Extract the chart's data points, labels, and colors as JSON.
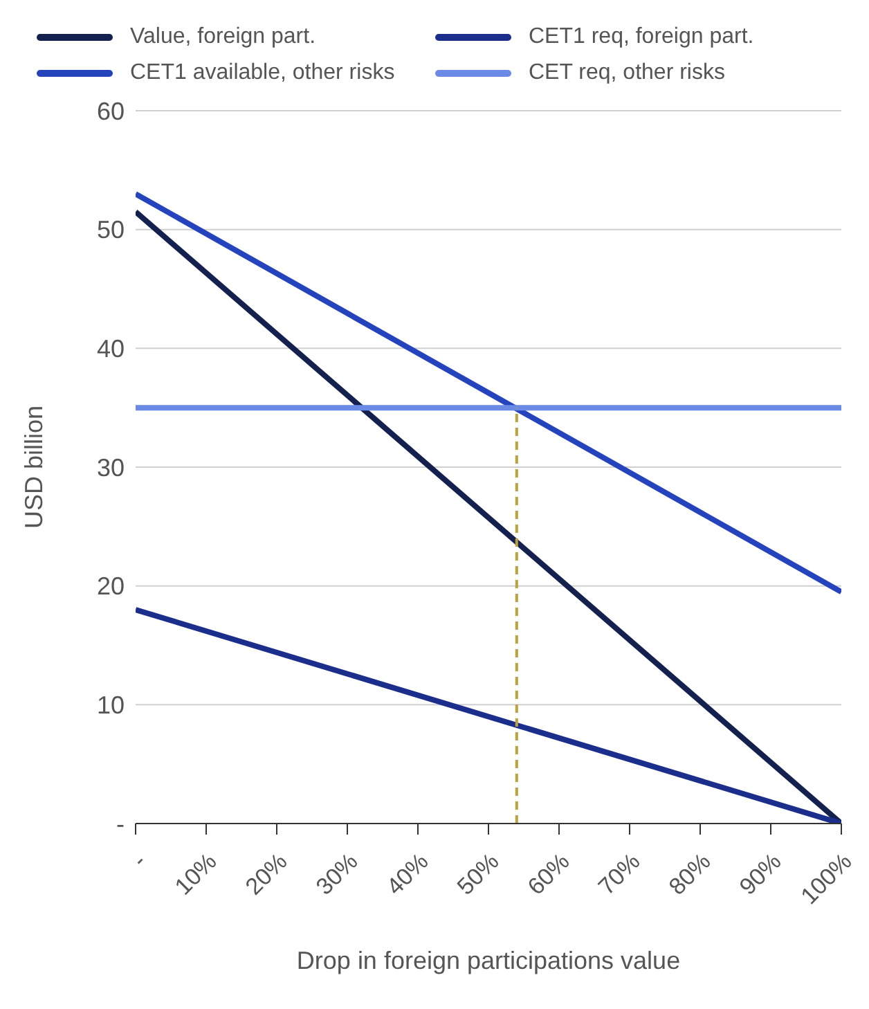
{
  "chart_data": {
    "type": "line",
    "xlabel": "Drop in foreign participations value",
    "ylabel": "USD billion",
    "x": [
      0,
      100
    ],
    "series": [
      {
        "name": "Value, foreign part.",
        "color": "#14214f",
        "values": [
          51.5,
          0
        ]
      },
      {
        "name": "CET1 req, foreign part.",
        "color": "#1c2e8c",
        "values": [
          18,
          0
        ]
      },
      {
        "name": "CET1 available, other risks",
        "color": "#2443bd",
        "values": [
          53,
          19.5
        ]
      },
      {
        "name": "CET req, other risks",
        "color": "#6a8ae6",
        "values": [
          35,
          35
        ]
      },
      {
        "color": "#bba044",
        "x": [
          54,
          54
        ],
        "values": [
          0,
          35
        ],
        "line_style": "dashed"
      }
    ],
    "xlim": [
      0,
      100
    ],
    "xticks": [
      {
        "value": 0,
        "label": "-"
      },
      {
        "value": 10,
        "label": "10%"
      },
      {
        "value": 20,
        "label": "20%"
      },
      {
        "value": 30,
        "label": "30%"
      },
      {
        "value": 40,
        "label": "40%"
      },
      {
        "value": 50,
        "label": "50%"
      },
      {
        "value": 60,
        "label": "60%"
      },
      {
        "value": 70,
        "label": "70%"
      },
      {
        "value": 80,
        "label": "80%"
      },
      {
        "value": 90,
        "label": "90%"
      },
      {
        "value": 100,
        "label": "100%"
      }
    ],
    "ylim": [
      0,
      60
    ],
    "yticks": [
      {
        "value": 0,
        "label": "-"
      },
      10,
      20,
      30,
      40,
      50,
      60
    ],
    "grid": "y",
    "legend": "top",
    "marker": "none",
    "line_style": "solid"
  }
}
